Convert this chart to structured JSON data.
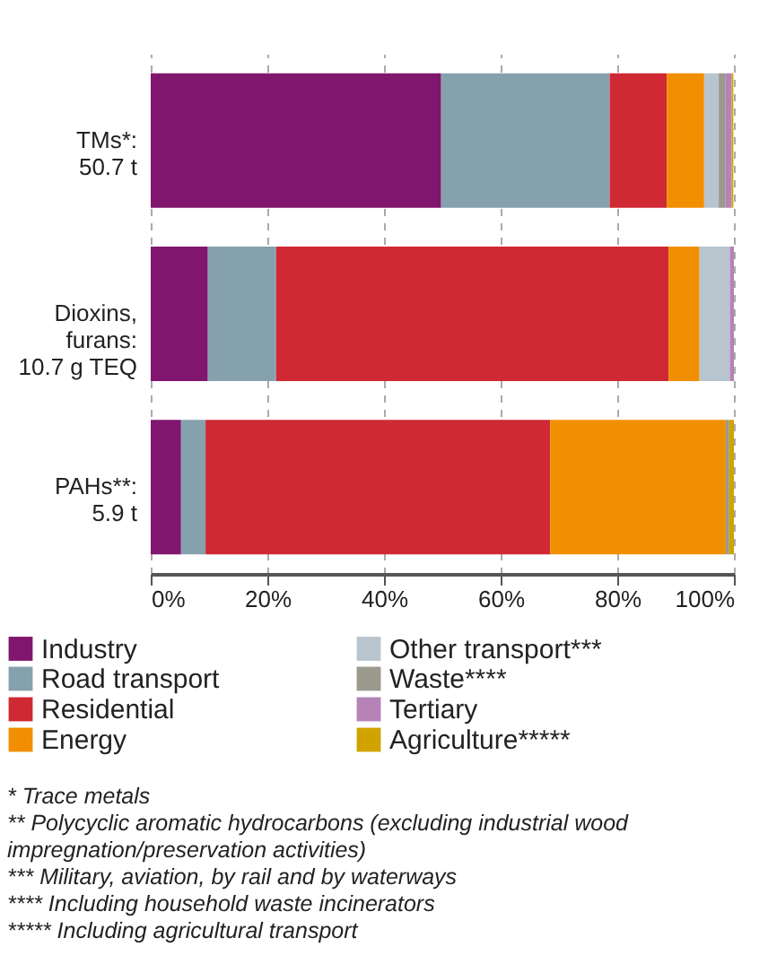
{
  "chart_data": {
    "type": "bar",
    "orientation": "horizontal",
    "stacked": true,
    "categories": [
      "TMs*:\n50.7 t",
      "Dioxins,\nfurans:\n10.7 g TEQ",
      "PAHs**:\n5.9 t"
    ],
    "series": [
      {
        "name": "Industry",
        "color": "#80166e",
        "values": [
          49.8,
          9.8,
          5.2
        ]
      },
      {
        "name": "Road transport",
        "color": "#86a1ae",
        "values": [
          28.9,
          11.7,
          4.2
        ]
      },
      {
        "name": "Residential",
        "color": "#cf2934",
        "values": [
          9.8,
          67.3,
          59.1
        ]
      },
      {
        "name": "Energy",
        "color": "#f18f00",
        "values": [
          6.4,
          5.3,
          30.1
        ]
      },
      {
        "name": "Other transport***",
        "color": "#b8c5ce",
        "values": [
          2.5,
          5.2,
          0
        ]
      },
      {
        "name": "Waste****",
        "color": "#9b9a8c",
        "values": [
          1.1,
          0,
          0.6
        ]
      },
      {
        "name": "Tertiary",
        "color": "#b583b8",
        "values": [
          1.1,
          0.7,
          0
        ]
      },
      {
        "name": "Agriculture*****",
        "color": "#d0a300",
        "values": [
          0.3,
          0,
          0.8
        ]
      }
    ],
    "xlim": [
      0,
      100
    ],
    "xticks": [
      {
        "value": 0,
        "label": "0%"
      },
      {
        "value": 20,
        "label": "20%"
      },
      {
        "value": 40,
        "label": "40%"
      },
      {
        "value": 60,
        "label": "60%"
      },
      {
        "value": 80,
        "label": "80%"
      },
      {
        "value": 100,
        "label": "100%"
      }
    ],
    "grid": "x",
    "legend": "bottom",
    "annotations": [
      "* Trace metals",
      "** Polycyclic aromatic hydrocarbons (excluding industrial wood impregnation/preservation activities)",
      "*** Military, aviation, by rail and by waterways",
      "**** Including household waste incinerators",
      "***** Including agricultural transport"
    ]
  }
}
